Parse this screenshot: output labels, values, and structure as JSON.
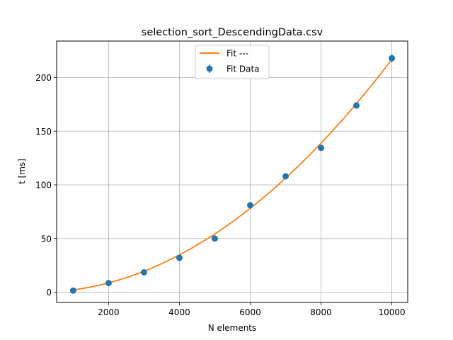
{
  "chart_data": {
    "type": "scatter",
    "title": "selection_sort_DescendingData.csv",
    "xlabel": "N elements",
    "ylabel": "t [ms]",
    "xlim": [
      0,
      10000
    ],
    "ylim": [
      -10,
      230
    ],
    "xticks": [
      2000,
      4000,
      6000,
      8000,
      10000
    ],
    "yticks": [
      0,
      50,
      100,
      150,
      200
    ],
    "grid": true,
    "legend_position": "top-center",
    "series": [
      {
        "name": "Fit ---",
        "kind": "line",
        "color": "#ff7f0e",
        "fit_coefficient": 2.17e-06,
        "x_range": [
          1000,
          10000
        ]
      },
      {
        "name": "Fit Data",
        "kind": "errorbar-points",
        "color": "#1f77b4",
        "x": [
          1000,
          2000,
          3000,
          4000,
          5000,
          6000,
          7000,
          8000,
          9000,
          10000
        ],
        "y": [
          1.5,
          8.5,
          18.5,
          32,
          50,
          81,
          108,
          134.5,
          174,
          218
        ],
        "yerr": [
          0.5,
          0.8,
          0.8,
          1.2,
          1.2,
          1.2,
          1.5,
          1.5,
          3,
          3.5
        ]
      }
    ]
  }
}
